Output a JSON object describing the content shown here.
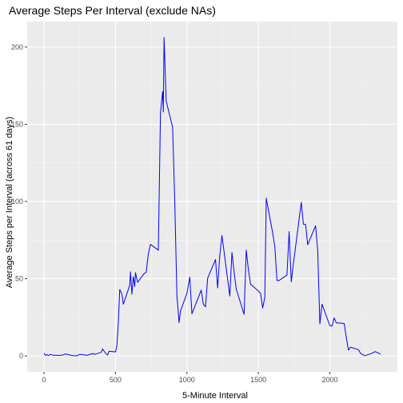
{
  "chart_data": {
    "type": "line",
    "title": "Average Steps Per Interval (exclude NAs)",
    "xlabel": "5-Minute Interval",
    "ylabel": "Average Steps per Interval (across 61 days)",
    "xlim": [
      -117.5,
      2472.5
    ],
    "ylim": [
      -10.3,
      216.5
    ],
    "x_ticks": [
      0,
      500,
      1000,
      1500,
      2000
    ],
    "y_ticks": [
      0,
      50,
      100,
      150,
      200
    ],
    "grid": true,
    "legend": "none",
    "colors": {
      "line": "#0000ff",
      "panel": "#ebebeb",
      "grid_major": "#ffffff",
      "grid_minor": "#f5f5f5",
      "tick": "#333333"
    },
    "series": [
      {
        "x": [
          0,
          10,
          20,
          30,
          45,
          55,
          100,
          130,
          150,
          200,
          230,
          250,
          300,
          330,
          345,
          355,
          400,
          410,
          430,
          445,
          455,
          500,
          510,
          520,
          530,
          545,
          555,
          600,
          605,
          615,
          625,
          635,
          640,
          655,
          700,
          715,
          730,
          745,
          800,
          815,
          830,
          835,
          840,
          855,
          900,
          915,
          930,
          945,
          955,
          1000,
          1020,
          1035,
          1100,
          1115,
          1130,
          1145,
          1200,
          1215,
          1230,
          1245,
          1300,
          1315,
          1330,
          1345,
          1400,
          1415,
          1430,
          1445,
          1500,
          1515,
          1530,
          1545,
          1555,
          1600,
          1615,
          1630,
          1645,
          1700,
          1715,
          1730,
          1745,
          1800,
          1815,
          1830,
          1845,
          1900,
          1915,
          1930,
          1945,
          2000,
          2015,
          2030,
          2045,
          2100,
          2115,
          2130,
          2145,
          2200,
          2215,
          2230,
          2245,
          2300,
          2315,
          2330,
          2355
        ],
        "y": [
          1.7,
          0.3,
          0.9,
          0.2,
          1.0,
          0.6,
          0.3,
          0.5,
          1.3,
          0.2,
          0.1,
          1.0,
          0.4,
          1.2,
          1.6,
          1.0,
          2.3,
          4.5,
          1.8,
          0.6,
          3.0,
          2.6,
          6.8,
          21.3,
          43.0,
          40.1,
          33.5,
          45.8,
          54.5,
          40.0,
          51.4,
          44.9,
          54.0,
          47.6,
          53.3,
          54.2,
          66.0,
          72.2,
          68.5,
          157.5,
          171.2,
          158.0,
          206.2,
          165.0,
          148.0,
          100.0,
          39.1,
          21.5,
          29.0,
          40.6,
          51.0,
          27.3,
          42.6,
          33.5,
          31.8,
          50.3,
          62.4,
          44.0,
          65.3,
          78.0,
          38.8,
          67.0,
          54.4,
          43.3,
          26.9,
          68.5,
          55.9,
          46.5,
          42.0,
          40.5,
          31.0,
          38.0,
          102.1,
          79.6,
          70.7,
          48.7,
          48.9,
          52.4,
          80.5,
          48.0,
          59.7,
          99.5,
          85.3,
          85.2,
          72.0,
          84.3,
          68.3,
          20.8,
          33.5,
          19.6,
          19.3,
          24.6,
          21.4,
          21.0,
          11.9,
          3.8,
          5.6,
          4.1,
          1.6,
          0.9,
          0.1,
          1.9,
          2.8,
          2.3,
          1.1
        ]
      }
    ]
  }
}
